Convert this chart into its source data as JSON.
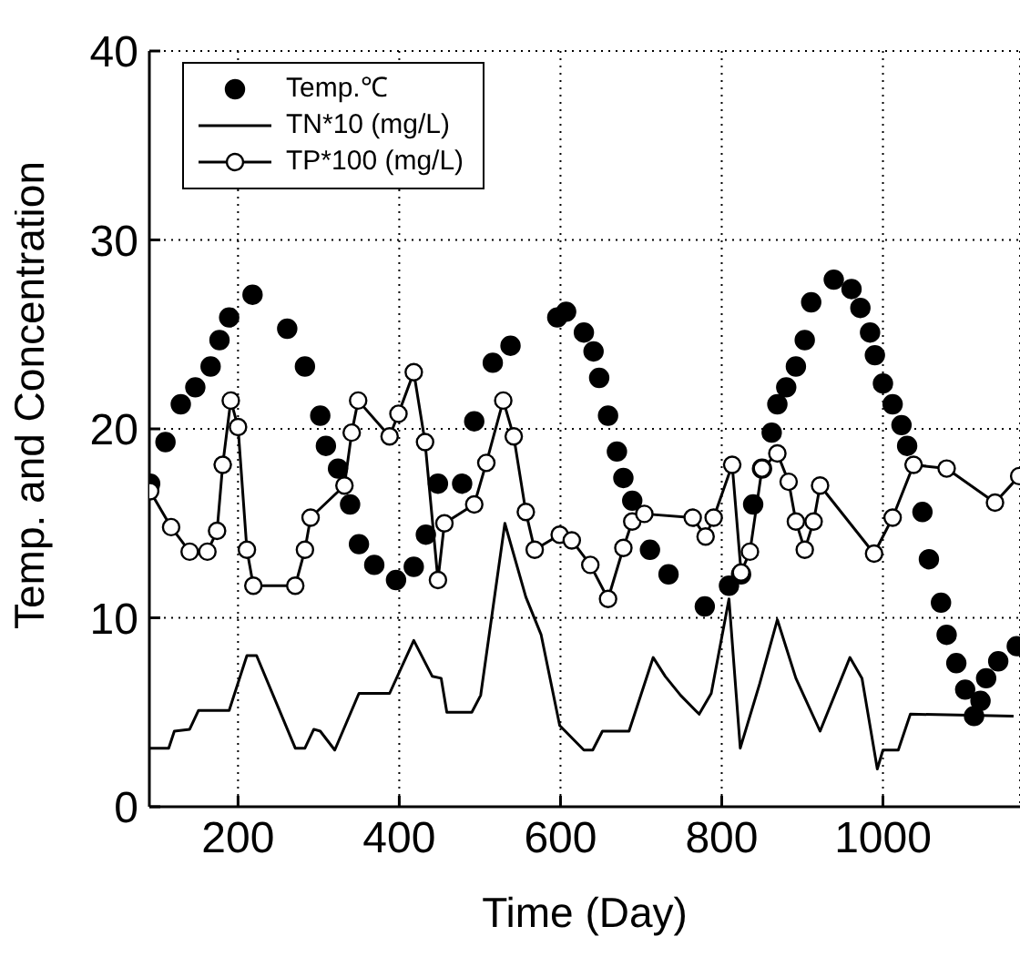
{
  "chart_data": {
    "type": "line",
    "xlabel": "Time (Day)",
    "ylabel": "Temp. and Concentration",
    "xlim": [
      90,
      1170
    ],
    "xticks": [
      200,
      400,
      600,
      800,
      1000
    ],
    "ylim": [
      0,
      40
    ],
    "yticks": [
      0,
      10,
      20,
      30,
      40
    ],
    "grid": true,
    "legend": "top left",
    "series": [
      {
        "name": "Temp.℃",
        "type": "scatter",
        "marker": "circle",
        "color": "#000000",
        "x": [
          91,
          110,
          129,
          147,
          166,
          177,
          189,
          218,
          261,
          283,
          302,
          309,
          324,
          339,
          350,
          369,
          396,
          418,
          433,
          448,
          478,
          493,
          516,
          538,
          596,
          607,
          629,
          641,
          648,
          659,
          670,
          678,
          689,
          711,
          734,
          779,
          809,
          824,
          839,
          850,
          862,
          869,
          880,
          892,
          903,
          911,
          939,
          961,
          972,
          984,
          990,
          1000,
          1012,
          1023,
          1030,
          1049,
          1057,
          1072,
          1079,
          1091,
          1102,
          1113,
          1121,
          1128,
          1143,
          1166
        ],
        "values": [
          17.1,
          19.3,
          21.3,
          22.2,
          23.3,
          24.7,
          25.9,
          27.1,
          25.3,
          23.3,
          20.7,
          19.1,
          17.9,
          16.0,
          13.9,
          12.8,
          12.0,
          12.7,
          14.4,
          17.1,
          17.1,
          20.4,
          23.5,
          24.4,
          25.9,
          26.2,
          25.1,
          24.1,
          22.7,
          20.7,
          18.8,
          17.4,
          16.2,
          13.6,
          12.3,
          10.6,
          11.7,
          12.3,
          16.0,
          17.9,
          19.8,
          21.3,
          22.2,
          23.3,
          24.7,
          26.7,
          27.9,
          27.4,
          26.4,
          25.1,
          23.9,
          22.4,
          21.3,
          20.2,
          19.1,
          15.6,
          13.1,
          10.8,
          9.1,
          7.6,
          6.2,
          4.8,
          5.6,
          6.8,
          7.7,
          8.5
        ]
      },
      {
        "name": "TN*10 (mg/L)",
        "marker": "none",
        "color": "#000000",
        "x": [
          91,
          114,
          121,
          140,
          151,
          189,
          211,
          223,
          271,
          283,
          294,
          302,
          320,
          350,
          388,
          418,
          441,
          452,
          459,
          490,
          501,
          531,
          557,
          576,
          599,
          629,
          640,
          652,
          685,
          715,
          730,
          749,
          772,
          787,
          809,
          823,
          847,
          869,
          892,
          922,
          959,
          974,
          993,
          1000,
          1019,
          1034,
          1162
        ],
        "values": [
          3.1,
          3.1,
          4.0,
          4.1,
          5.1,
          5.1,
          8.0,
          8.0,
          3.1,
          3.1,
          4.1,
          4.0,
          3.0,
          6.0,
          6.0,
          8.8,
          6.9,
          6.8,
          5.0,
          5.0,
          5.9,
          15.0,
          11.1,
          9.1,
          4.3,
          3.0,
          3.0,
          4.0,
          4.0,
          7.9,
          6.9,
          5.9,
          4.9,
          6.0,
          11.0,
          3.1,
          6.5,
          9.9,
          6.8,
          4.0,
          7.9,
          6.8,
          2.0,
          3.0,
          3.0,
          4.9,
          4.8
        ]
      },
      {
        "name": "TP*100 (mg/L)",
        "marker": "circle",
        "color": "#000000",
        "x": [
          91,
          117,
          140,
          162,
          174,
          181,
          191,
          200,
          211,
          219,
          271,
          283,
          290,
          332,
          341,
          349,
          388,
          399,
          418,
          432,
          448,
          456,
          493,
          508,
          529,
          542,
          557,
          568,
          599,
          614,
          637,
          659,
          678,
          689,
          704,
          764,
          780,
          790,
          813,
          824,
          835,
          850,
          869,
          883,
          892,
          903,
          914,
          922,
          989,
          1012,
          1038,
          1079,
          1139,
          1169
        ],
        "values": [
          16.7,
          14.8,
          13.5,
          13.5,
          14.6,
          18.1,
          21.5,
          20.1,
          13.6,
          11.7,
          11.7,
          13.6,
          15.3,
          17.0,
          19.8,
          21.5,
          19.6,
          20.8,
          23.0,
          19.3,
          12.0,
          15.0,
          16.0,
          18.2,
          21.5,
          19.6,
          15.6,
          13.6,
          14.4,
          14.1,
          12.8,
          11.0,
          13.7,
          15.1,
          15.5,
          15.3,
          14.3,
          15.3,
          18.1,
          12.4,
          13.5,
          17.9,
          18.7,
          17.2,
          15.1,
          13.6,
          15.1,
          17.0,
          13.4,
          15.3,
          18.1,
          17.9,
          16.1,
          17.5
        ]
      }
    ]
  }
}
